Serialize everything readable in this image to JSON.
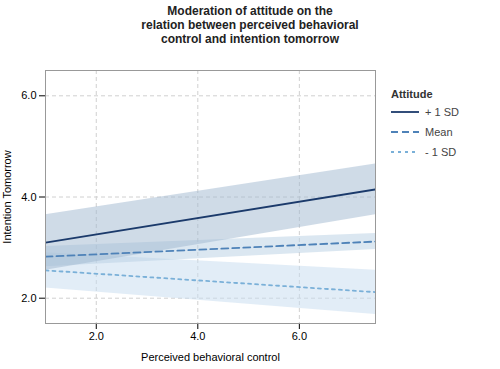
{
  "chart_data": {
    "type": "line",
    "title": "Moderation of attitude on the\nrelation between perceived behavioral\ncontrol and intention tomorrow",
    "xlabel": "Perceived behavioral control",
    "ylabel": "Intention Tomorrow",
    "xlim": [
      1.0,
      7.5
    ],
    "ylim": [
      1.5,
      6.5
    ],
    "xticks": [
      2,
      4,
      6
    ],
    "yticks": [
      2,
      4,
      6
    ],
    "grid": true,
    "legend": "right",
    "legend_title": "Attitude",
    "series": [
      {
        "name": "+ 1 SD",
        "color": "#1b3a6b",
        "line_style": "solid",
        "ci_color": "#9fb8d0",
        "x": [
          1.0,
          7.5
        ],
        "values": [
          3.1,
          4.15
        ],
        "ci_upper": [
          3.65,
          4.65
        ],
        "ci_lower": [
          2.55,
          3.65
        ]
      },
      {
        "name": "Mean",
        "color": "#4e82b8",
        "line_style": "dashed",
        "ci_color": "#b8d0e4",
        "x": [
          1.0,
          7.5
        ],
        "values": [
          2.82,
          3.12
        ],
        "ci_upper": [
          3.02,
          3.28
        ],
        "ci_lower": [
          2.62,
          2.96
        ]
      },
      {
        "name": "- 1 SD",
        "color": "#7ab0d8",
        "line_style": "dotted",
        "ci_color": "#c5dcef",
        "x": [
          1.0,
          7.5
        ],
        "values": [
          2.55,
          2.12
        ],
        "ci_upper": [
          2.9,
          2.55
        ],
        "ci_lower": [
          2.2,
          1.68
        ]
      }
    ]
  }
}
